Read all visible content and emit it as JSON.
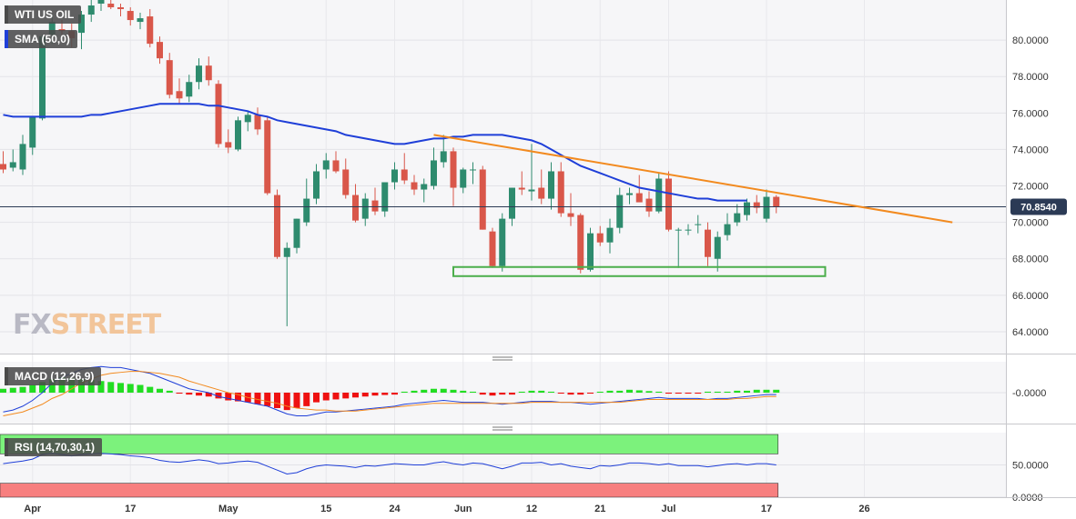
{
  "labels": {
    "instrument": "WTI US OIL",
    "sma": "SMA (50,0)",
    "macd": "MACD (12,26,9)",
    "rsi": "RSI (14,70,30,1)",
    "last_price": "70.8540",
    "logo_fx": "FX",
    "logo_street": "STREET"
  },
  "colors": {
    "up": "#2e8b6e",
    "down": "#d9574a",
    "sma": "#1f3fd8",
    "trendline": "#f28a1f",
    "support_box": "#4cae4c",
    "macd_line": "#1f3fd8",
    "signal_line": "#f28a1f",
    "hist_pos": "#22dd22",
    "hist_neg": "#ee1111",
    "rsi_line": "#1f3fd8",
    "overbought_zone": "#7cf27c",
    "oversold_zone": "#f77f7f",
    "price_badge": "#2b3a55"
  },
  "chart_data": [
    {
      "type": "candlestick",
      "panel": "price",
      "ylim": [
        62.8,
        82.2
      ],
      "y_ticks": [
        "80.0000",
        "78.0000",
        "76.0000",
        "74.0000",
        "72.0000",
        "70.0000",
        "68.0000",
        "66.0000",
        "64.0000"
      ],
      "y_tick_values": [
        80,
        78,
        76,
        74,
        72,
        70,
        68,
        66,
        64
      ],
      "x_ticks": [
        "Apr",
        "17",
        "May",
        "15",
        "24",
        "Jun",
        "12",
        "21",
        "Jul",
        "17",
        "26"
      ],
      "x_tick_index": [
        3,
        13,
        23,
        33,
        40,
        47,
        54,
        61,
        68,
        78,
        88
      ],
      "last_price": 70.854,
      "candles": [
        {
          "o": 73.2,
          "h": 73.9,
          "l": 72.7,
          "c": 72.9
        },
        {
          "o": 73.0,
          "h": 74.0,
          "l": 72.8,
          "c": 73.3
        },
        {
          "o": 72.9,
          "h": 74.8,
          "l": 72.6,
          "c": 74.3
        },
        {
          "o": 74.1,
          "h": 75.8,
          "l": 73.7,
          "c": 75.8
        },
        {
          "o": 75.7,
          "h": 80.3,
          "l": 75.6,
          "c": 80.2
        },
        {
          "o": 80.3,
          "h": 81.4,
          "l": 79.8,
          "c": 81.0
        },
        {
          "o": 80.6,
          "h": 81.1,
          "l": 80.3,
          "c": 80.5
        },
        {
          "o": 80.5,
          "h": 80.9,
          "l": 79.6,
          "c": 80.1
        },
        {
          "o": 80.4,
          "h": 81.6,
          "l": 79.5,
          "c": 81.4
        },
        {
          "o": 81.4,
          "h": 82.2,
          "l": 81.0,
          "c": 81.9
        },
        {
          "o": 82.0,
          "h": 82.3,
          "l": 81.6,
          "c": 82.2
        },
        {
          "o": 82.0,
          "h": 82.3,
          "l": 81.7,
          "c": 81.8
        },
        {
          "o": 81.8,
          "h": 82.0,
          "l": 81.3,
          "c": 81.7
        },
        {
          "o": 81.6,
          "h": 81.8,
          "l": 80.8,
          "c": 81.1
        },
        {
          "o": 81.0,
          "h": 81.5,
          "l": 80.6,
          "c": 81.2
        },
        {
          "o": 81.3,
          "h": 81.7,
          "l": 79.6,
          "c": 79.8
        },
        {
          "o": 79.9,
          "h": 80.2,
          "l": 78.7,
          "c": 79.0
        },
        {
          "o": 78.9,
          "h": 79.3,
          "l": 76.8,
          "c": 77.0
        },
        {
          "o": 77.2,
          "h": 77.9,
          "l": 76.5,
          "c": 76.8
        },
        {
          "o": 76.9,
          "h": 78.1,
          "l": 76.6,
          "c": 77.7
        },
        {
          "o": 77.7,
          "h": 79.0,
          "l": 77.3,
          "c": 78.6
        },
        {
          "o": 78.6,
          "h": 79.1,
          "l": 77.5,
          "c": 77.8
        },
        {
          "o": 77.6,
          "h": 77.8,
          "l": 74.1,
          "c": 74.3
        },
        {
          "o": 74.4,
          "h": 75.1,
          "l": 73.8,
          "c": 74.1
        },
        {
          "o": 74.0,
          "h": 75.8,
          "l": 73.9,
          "c": 75.6
        },
        {
          "o": 75.5,
          "h": 76.1,
          "l": 75.0,
          "c": 75.9
        },
        {
          "o": 75.9,
          "h": 76.3,
          "l": 74.8,
          "c": 75.1
        },
        {
          "o": 75.6,
          "h": 75.8,
          "l": 71.5,
          "c": 71.6
        },
        {
          "o": 71.5,
          "h": 71.8,
          "l": 68.0,
          "c": 68.1
        },
        {
          "o": 68.1,
          "h": 68.9,
          "l": 64.3,
          "c": 68.6
        },
        {
          "o": 68.6,
          "h": 70.2,
          "l": 68.3,
          "c": 70.2
        },
        {
          "o": 70.0,
          "h": 72.4,
          "l": 69.8,
          "c": 71.3
        },
        {
          "o": 71.3,
          "h": 73.2,
          "l": 71.0,
          "c": 72.8
        },
        {
          "o": 72.9,
          "h": 73.8,
          "l": 72.4,
          "c": 73.4
        },
        {
          "o": 73.4,
          "h": 73.9,
          "l": 72.7,
          "c": 72.8
        },
        {
          "o": 72.9,
          "h": 73.5,
          "l": 71.3,
          "c": 71.5
        },
        {
          "o": 71.5,
          "h": 72.1,
          "l": 70.0,
          "c": 70.1
        },
        {
          "o": 70.2,
          "h": 71.6,
          "l": 69.8,
          "c": 71.3
        },
        {
          "o": 71.2,
          "h": 71.9,
          "l": 70.4,
          "c": 70.6
        },
        {
          "o": 70.6,
          "h": 72.2,
          "l": 70.3,
          "c": 72.2
        },
        {
          "o": 72.2,
          "h": 73.3,
          "l": 71.8,
          "c": 72.9
        },
        {
          "o": 72.9,
          "h": 73.8,
          "l": 72.1,
          "c": 72.3
        },
        {
          "o": 72.2,
          "h": 72.6,
          "l": 71.5,
          "c": 71.8
        },
        {
          "o": 71.8,
          "h": 72.4,
          "l": 71.1,
          "c": 72.1
        },
        {
          "o": 72.0,
          "h": 74.1,
          "l": 71.8,
          "c": 73.4
        },
        {
          "o": 73.3,
          "h": 74.8,
          "l": 73.0,
          "c": 73.9
        },
        {
          "o": 73.9,
          "h": 74.1,
          "l": 70.9,
          "c": 71.9
        },
        {
          "o": 71.9,
          "h": 73.0,
          "l": 71.6,
          "c": 72.9
        },
        {
          "o": 72.9,
          "h": 73.3,
          "l": 72.1,
          "c": 72.9
        },
        {
          "o": 72.9,
          "h": 73.1,
          "l": 69.6,
          "c": 69.6
        },
        {
          "o": 69.5,
          "h": 69.7,
          "l": 67.5,
          "c": 67.6
        },
        {
          "o": 67.6,
          "h": 70.5,
          "l": 67.3,
          "c": 70.2
        },
        {
          "o": 70.2,
          "h": 71.9,
          "l": 69.8,
          "c": 71.9
        },
        {
          "o": 71.9,
          "h": 72.8,
          "l": 71.5,
          "c": 71.8
        },
        {
          "o": 71.7,
          "h": 74.3,
          "l": 71.2,
          "c": 71.8
        },
        {
          "o": 71.9,
          "h": 72.9,
          "l": 71.0,
          "c": 71.3
        },
        {
          "o": 71.3,
          "h": 73.3,
          "l": 70.7,
          "c": 72.8
        },
        {
          "o": 72.8,
          "h": 73.3,
          "l": 70.3,
          "c": 70.5
        },
        {
          "o": 70.5,
          "h": 71.6,
          "l": 69.8,
          "c": 70.3
        },
        {
          "o": 70.4,
          "h": 70.5,
          "l": 67.2,
          "c": 67.4
        },
        {
          "o": 67.4,
          "h": 69.7,
          "l": 67.3,
          "c": 69.4
        },
        {
          "o": 69.4,
          "h": 69.8,
          "l": 68.7,
          "c": 68.9
        },
        {
          "o": 68.9,
          "h": 70.2,
          "l": 68.3,
          "c": 69.7
        },
        {
          "o": 69.7,
          "h": 71.9,
          "l": 69.4,
          "c": 71.5
        },
        {
          "o": 71.5,
          "h": 71.9,
          "l": 71.0,
          "c": 71.6
        },
        {
          "o": 71.6,
          "h": 72.6,
          "l": 71.2,
          "c": 71.1
        },
        {
          "o": 71.3,
          "h": 71.7,
          "l": 70.3,
          "c": 70.6
        },
        {
          "o": 70.6,
          "h": 72.7,
          "l": 70.5,
          "c": 72.4
        },
        {
          "o": 72.4,
          "h": 72.8,
          "l": 69.5,
          "c": 69.6
        },
        {
          "o": 69.6,
          "h": 69.7,
          "l": 67.5,
          "c": 69.6
        },
        {
          "o": 69.6,
          "h": 69.9,
          "l": 69.3,
          "c": 69.6
        },
        {
          "o": 69.9,
          "h": 70.4,
          "l": 69.4,
          "c": 69.9
        },
        {
          "o": 69.6,
          "h": 70.0,
          "l": 67.6,
          "c": 68.1
        },
        {
          "o": 68.0,
          "h": 69.5,
          "l": 67.3,
          "c": 69.2
        },
        {
          "o": 69.3,
          "h": 70.5,
          "l": 69.0,
          "c": 69.9
        },
        {
          "o": 70.0,
          "h": 71.0,
          "l": 69.8,
          "c": 70.5
        },
        {
          "o": 70.4,
          "h": 71.3,
          "l": 70.1,
          "c": 71.1
        },
        {
          "o": 71.1,
          "h": 71.5,
          "l": 70.5,
          "c": 70.8
        },
        {
          "o": 70.2,
          "h": 71.8,
          "l": 70.0,
          "c": 71.4
        },
        {
          "o": 71.4,
          "h": 71.5,
          "l": 70.5,
          "c": 70.85
        }
      ],
      "sma50": [
        75.9,
        75.8,
        75.8,
        75.8,
        75.8,
        75.8,
        75.8,
        75.8,
        75.8,
        75.9,
        75.9,
        76.0,
        76.1,
        76.2,
        76.3,
        76.4,
        76.5,
        76.5,
        76.5,
        76.5,
        76.5,
        76.4,
        76.4,
        76.3,
        76.2,
        76.1,
        75.9,
        75.8,
        75.6,
        75.5,
        75.4,
        75.3,
        75.2,
        75.1,
        75.0,
        74.8,
        74.7,
        74.6,
        74.5,
        74.4,
        74.3,
        74.3,
        74.4,
        74.5,
        74.6,
        74.6,
        74.7,
        74.7,
        74.8,
        74.8,
        74.8,
        74.8,
        74.7,
        74.6,
        74.5,
        74.3,
        74.0,
        73.7,
        73.4,
        73.1,
        72.9,
        72.7,
        72.5,
        72.3,
        72.1,
        71.9,
        71.8,
        71.7,
        71.6,
        71.5,
        71.4,
        71.3,
        71.3,
        71.2,
        71.2,
        71.2,
        71.2
      ],
      "sma_offset": 0,
      "trendline": {
        "from_index": 44,
        "from_value": 74.8,
        "to_index": 97,
        "to_value": 70.0
      },
      "support_zone": {
        "from_index": 46,
        "to_index": 84,
        "low": 67.05,
        "high": 67.55
      }
    },
    {
      "type": "macd",
      "panel": "macd",
      "ylim": [
        -1.6,
        1.6
      ],
      "y_ticks": [
        "-0.0000"
      ],
      "y_tick_values": [
        0
      ],
      "macd": [
        -1.0,
        -0.9,
        -0.7,
        -0.4,
        0.0,
        0.5,
        0.8,
        1.0,
        1.2,
        1.3,
        1.35,
        1.3,
        1.3,
        1.2,
        1.1,
        1.0,
        0.8,
        0.6,
        0.4,
        0.2,
        0.1,
        0.0,
        -0.2,
        -0.3,
        -0.4,
        -0.5,
        -0.6,
        -0.7,
        -0.9,
        -1.1,
        -1.2,
        -1.2,
        -1.1,
        -1.0,
        -1.0,
        -0.95,
        -0.9,
        -0.85,
        -0.8,
        -0.75,
        -0.7,
        -0.6,
        -0.55,
        -0.5,
        -0.45,
        -0.4,
        -0.45,
        -0.5,
        -0.5,
        -0.5,
        -0.55,
        -0.6,
        -0.55,
        -0.5,
        -0.45,
        -0.45,
        -0.45,
        -0.5,
        -0.5,
        -0.55,
        -0.6,
        -0.55,
        -0.5,
        -0.45,
        -0.4,
        -0.35,
        -0.3,
        -0.25,
        -0.3,
        -0.3,
        -0.3,
        -0.3,
        -0.35,
        -0.3,
        -0.3,
        -0.25,
        -0.2,
        -0.15,
        -0.1,
        -0.1
      ],
      "signal": [
        -1.2,
        -1.1,
        -1.0,
        -0.8,
        -0.6,
        -0.3,
        -0.1,
        0.2,
        0.5,
        0.7,
        0.9,
        1.0,
        1.05,
        1.1,
        1.1,
        1.05,
        1.0,
        0.9,
        0.8,
        0.6,
        0.45,
        0.3,
        0.15,
        0.0,
        -0.1,
        -0.25,
        -0.35,
        -0.45,
        -0.55,
        -0.7,
        -0.8,
        -0.85,
        -0.9,
        -0.9,
        -0.95,
        -0.95,
        -0.95,
        -0.9,
        -0.85,
        -0.8,
        -0.75,
        -0.7,
        -0.65,
        -0.6,
        -0.55,
        -0.55,
        -0.55,
        -0.55,
        -0.55,
        -0.55,
        -0.55,
        -0.55,
        -0.55,
        -0.55,
        -0.5,
        -0.5,
        -0.5,
        -0.5,
        -0.5,
        -0.5,
        -0.5,
        -0.5,
        -0.5,
        -0.5,
        -0.45,
        -0.4,
        -0.35,
        -0.35,
        -0.35,
        -0.35,
        -0.35,
        -0.35,
        -0.35,
        -0.35,
        -0.35,
        -0.3,
        -0.3,
        -0.25,
        -0.2,
        -0.2
      ],
      "histogram": [
        0.2,
        0.25,
        0.3,
        0.4,
        0.55,
        0.7,
        0.8,
        0.75,
        0.7,
        0.65,
        0.6,
        0.55,
        0.5,
        0.45,
        0.4,
        0.3,
        0.2,
        0.1,
        -0.05,
        -0.1,
        -0.15,
        -0.2,
        -0.3,
        -0.4,
        -0.45,
        -0.5,
        -0.6,
        -0.7,
        -0.8,
        -0.9,
        -0.8,
        -0.7,
        -0.5,
        -0.4,
        -0.35,
        -0.3,
        -0.25,
        -0.2,
        -0.15,
        -0.12,
        -0.1,
        0.05,
        0.1,
        0.15,
        0.2,
        0.2,
        0.15,
        0.1,
        0.05,
        -0.1,
        -0.15,
        -0.1,
        -0.1,
        0.05,
        0.1,
        0.1,
        0.05,
        -0.05,
        -0.1,
        -0.1,
        -0.05,
        0.05,
        0.1,
        0.1,
        0.15,
        0.12,
        0.08,
        0.05,
        -0.05,
        -0.05,
        -0.05,
        -0.05,
        0.05,
        0.05,
        0.05,
        0.1,
        0.1,
        0.15,
        0.15,
        0.15
      ]
    },
    {
      "type": "line",
      "panel": "rsi",
      "ylim": [
        0,
        100
      ],
      "y_ticks": [
        "50.0000",
        "0.0000"
      ],
      "y_tick_values": [
        50,
        0
      ],
      "overbought": 70,
      "oversold": 30,
      "rsi": [
        52,
        54,
        56,
        59,
        66,
        68,
        66,
        64,
        66,
        67,
        68,
        67,
        66,
        64,
        63,
        61,
        57,
        55,
        54,
        56,
        58,
        56,
        52,
        53,
        55,
        56,
        54,
        48,
        42,
        36,
        38,
        44,
        48,
        50,
        49,
        48,
        46,
        49,
        48,
        50,
        52,
        51,
        50,
        50,
        53,
        55,
        52,
        50,
        53,
        52,
        48,
        44,
        48,
        53,
        53,
        54,
        50,
        52,
        48,
        46,
        44,
        49,
        48,
        50,
        53,
        53,
        52,
        50,
        52,
        49,
        49,
        49,
        47,
        49,
        51,
        52,
        50,
        52,
        52,
        50
      ]
    }
  ]
}
